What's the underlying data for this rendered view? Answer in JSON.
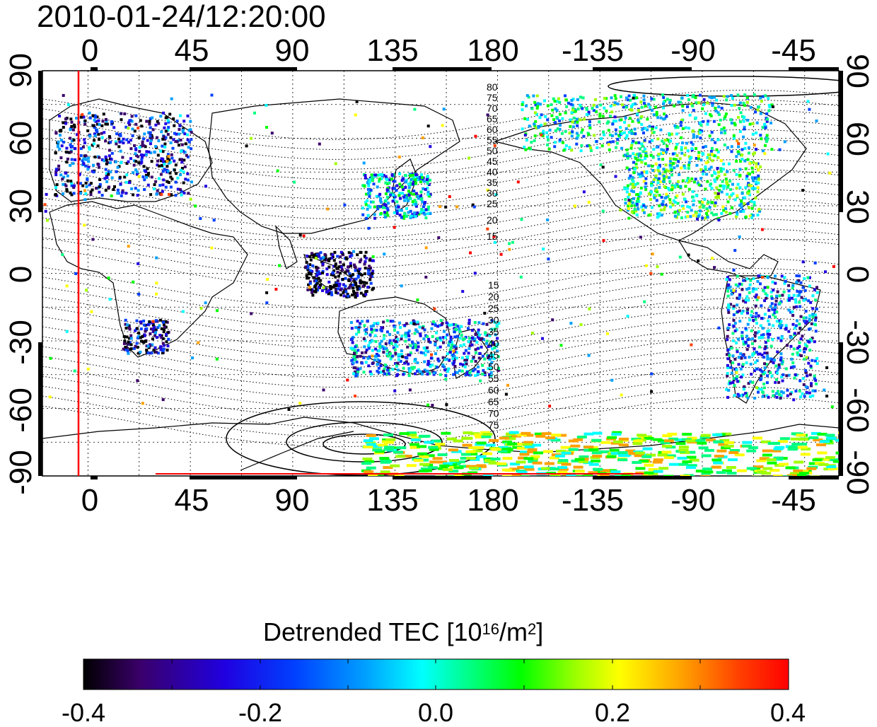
{
  "timestamp": "2010-01-24/12:20:00",
  "axes": {
    "top_ticks": [
      "0",
      "45",
      "90",
      "135",
      "180",
      "-135",
      "-90",
      "-45"
    ],
    "bottom_ticks": [
      "0",
      "45",
      "90",
      "135",
      "180",
      "-135",
      "-90",
      "-45"
    ],
    "left_ticks": [
      "90",
      "60",
      "30",
      "0",
      "-30",
      "-60",
      "-90"
    ],
    "right_ticks": [
      "90",
      "60",
      "30",
      "0",
      "-30",
      "-60",
      "-90"
    ]
  },
  "contour_labels": {
    "north": [
      "80",
      "75",
      "70",
      "65",
      "60",
      "55",
      "50",
      "45",
      "40",
      "35",
      "30",
      "25",
      "20",
      "15"
    ],
    "south": [
      "15",
      "20",
      "25",
      "30",
      "35",
      "40",
      "45",
      "50",
      "55",
      "60",
      "65",
      "70",
      "75"
    ]
  },
  "colorbar": {
    "title_main": "Detrended TEC  [10",
    "title_sup1": "16",
    "title_mid": "/m",
    "title_sup2": "2",
    "title_end": "]",
    "ticks": [
      "-0.4",
      "-0.2",
      "0.0",
      "0.2",
      "0.4"
    ],
    "range": [
      -0.4,
      0.4
    ],
    "colors": [
      "#000000",
      "#3a006a",
      "#2000e0",
      "#0040ff",
      "#00a0ff",
      "#00ffff",
      "#00ff80",
      "#00ff00",
      "#a0ff00",
      "#ffff00",
      "#ffa000",
      "#ff4000",
      "#ff0000"
    ]
  },
  "chart_data": {
    "type": "heatmap",
    "title": "2010-01-24/12:20:00",
    "xlabel": "",
    "ylabel": "",
    "x_ticks_top": [
      "0",
      "45",
      "90",
      "135",
      "180",
      "-135",
      "-90",
      "-45"
    ],
    "y_ticks": [
      "90",
      "60",
      "30",
      "0",
      "-30",
      "-60",
      "-90"
    ],
    "xlim_longitude": [
      -20,
      330
    ],
    "ylim_latitude": [
      -90,
      90
    ],
    "colorbar_label": "Detrended TEC [10^16/m^2]",
    "colorbar_range": [
      -0.4,
      0.4
    ],
    "red_vertical_line_longitude": -5,
    "data_regions": [
      {
        "region": "Europe",
        "lon": [
          -15,
          45
        ],
        "lat": [
          35,
          72
        ],
        "tec": -0.25
      },
      {
        "region": "Southern Africa",
        "lon": [
          15,
          35
        ],
        "lat": [
          -35,
          -20
        ],
        "tec": -0.28
      },
      {
        "region": "Japan / East Asia",
        "lon": [
          120,
          150
        ],
        "lat": [
          25,
          45
        ],
        "tec": -0.1
      },
      {
        "region": "Indonesia",
        "lon": [
          95,
          125
        ],
        "lat": [
          -10,
          10
        ],
        "tec": -0.35
      },
      {
        "region": "Australia / New Zealand",
        "lon": [
          115,
          180
        ],
        "lat": [
          -45,
          -20
        ],
        "tec": -0.15
      },
      {
        "region": "North America",
        "lon": [
          235,
          295
        ],
        "lat": [
          25,
          55
        ],
        "tec": 0.0
      },
      {
        "region": "Alaska / Canada",
        "lon": [
          190,
          300
        ],
        "lat": [
          55,
          80
        ],
        "tec": -0.05
      },
      {
        "region": "South America",
        "lon": [
          280,
          320
        ],
        "lat": [
          -55,
          0
        ],
        "tec": -0.15
      },
      {
        "region": "Antarctica edge",
        "lon": [
          120,
          330
        ],
        "lat": [
          -90,
          -70
        ],
        "tec": 0.1
      }
    ]
  }
}
